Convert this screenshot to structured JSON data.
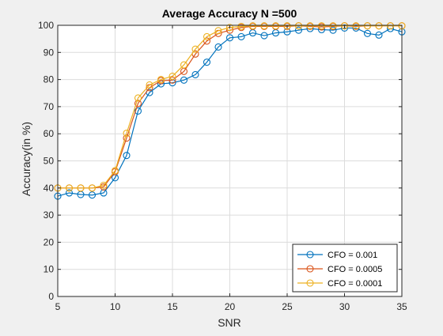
{
  "chart_data": {
    "type": "line",
    "title": "Average Accuracy N =500",
    "xlabel": "SNR",
    "ylabel": "Accuracy(in %)",
    "xlim": [
      5,
      35
    ],
    "ylim": [
      0,
      100
    ],
    "xticks": [
      5,
      10,
      15,
      20,
      25,
      30,
      35
    ],
    "yticks": [
      0,
      10,
      20,
      30,
      40,
      50,
      60,
      70,
      80,
      90,
      100
    ],
    "grid": true,
    "legend_position": "bottom-right",
    "x": [
      5,
      6,
      7,
      8,
      9,
      10,
      11,
      12,
      13,
      14,
      15,
      16,
      17,
      18,
      19,
      20,
      21,
      22,
      23,
      24,
      25,
      26,
      27,
      28,
      29,
      30,
      31,
      32,
      33,
      34,
      35
    ],
    "series": [
      {
        "name": "CFO = 0.001",
        "color": "#0072BD",
        "values": [
          37,
          38.2,
          37.6,
          37.4,
          38.2,
          43.8,
          52,
          68.4,
          75.2,
          78.4,
          78.8,
          79.8,
          81.8,
          86.4,
          92,
          95.4,
          95.8,
          97.2,
          96.2,
          97.2,
          97.6,
          98.2,
          98.8,
          98.4,
          98.2,
          99,
          99,
          97,
          96.4,
          98.8,
          97.6
        ]
      },
      {
        "name": "CFO = 0.0005",
        "color": "#D95319",
        "values": [
          40,
          40,
          40,
          40,
          40.4,
          46,
          58.4,
          71.2,
          77,
          79.6,
          79.8,
          83,
          89.4,
          94.2,
          97,
          98.2,
          99.2,
          99.6,
          99.6,
          99.6,
          99.6,
          99.8,
          99.6,
          99.4,
          99.6,
          99.8,
          99.6,
          99.8,
          99.8,
          99.8,
          99.8
        ]
      },
      {
        "name": "CFO = 0.0001",
        "color": "#EDB120",
        "values": [
          40,
          40,
          40,
          40,
          41,
          46.4,
          60.2,
          73.2,
          78,
          80,
          81.2,
          85.4,
          91.2,
          95.8,
          98,
          99.2,
          99.6,
          99.8,
          99.8,
          99.8,
          99.8,
          99.8,
          99.8,
          99.8,
          99.8,
          99.8,
          99.8,
          99.8,
          99.8,
          99.8,
          99.8
        ]
      }
    ]
  }
}
